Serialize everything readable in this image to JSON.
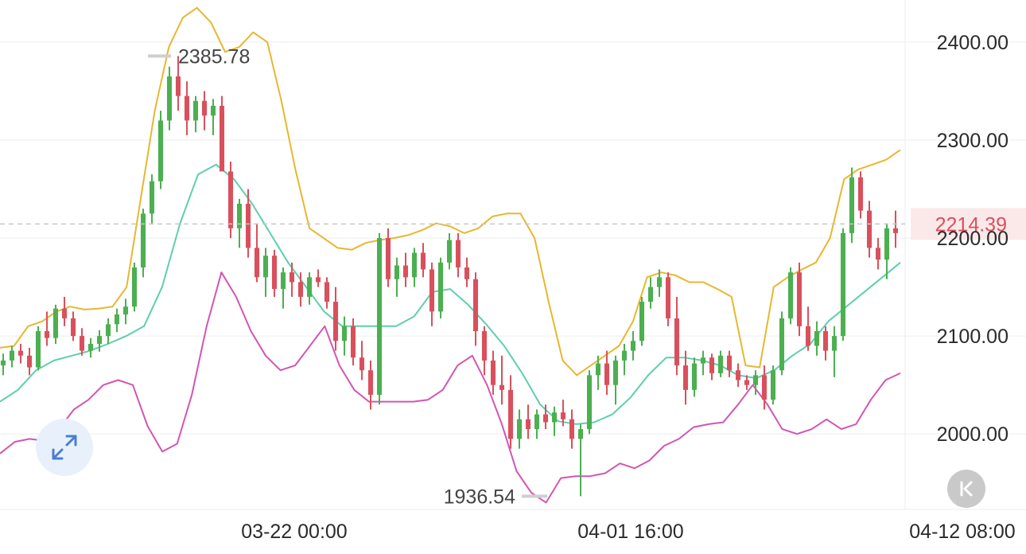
{
  "chart_data": {
    "type": "candlestick",
    "y_axis": {
      "ticks": [
        2000,
        2100,
        2200,
        2300,
        2400
      ],
      "tick_labels": [
        "2000.00",
        "2100.00",
        "2200.00",
        "2300.00",
        "2400.00"
      ],
      "range": [
        1923,
        2443
      ]
    },
    "x_axis": {
      "tick_labels": [
        "03-22 00:00",
        "04-01 16:00",
        "04-12 08:00"
      ]
    },
    "current_price": {
      "value": 2214.39,
      "label": "2214.39"
    },
    "annotations": [
      {
        "kind": "high",
        "label": "2385.78",
        "value": 2385.78
      },
      {
        "kind": "low",
        "label": "1936.54",
        "value": 1936.54
      }
    ],
    "indicators": {
      "upper_band": {
        "color": "#e8b730",
        "values": [
          2088,
          2090,
          2110,
          2115,
          2125,
          2130,
          2127,
          2128,
          2130,
          2150,
          2240,
          2330,
          2395,
          2425,
          2435,
          2420,
          2390,
          2395,
          2410,
          2400,
          2340,
          2270,
          2210,
          2200,
          2190,
          2188,
          2195,
          2198,
          2200,
          2203,
          2208,
          2215,
          2212,
          2205,
          2210,
          2222,
          2225,
          2225,
          2200,
          2135,
          2075,
          2060,
          2070,
          2080,
          2090,
          2115,
          2160,
          2165,
          2162,
          2155,
          2155,
          2148,
          2140,
          2070,
          2068,
          2150,
          2160,
          2168,
          2175,
          2200,
          2260,
          2270,
          2275,
          2280,
          2290
        ]
      },
      "middle_band": {
        "color": "#5dcfae",
        "values": [
          2033,
          2045,
          2065,
          2075,
          2080,
          2085,
          2092,
          2100,
          2110,
          2150,
          2215,
          2265,
          2275,
          2260,
          2235,
          2205,
          2175,
          2150,
          2125,
          2110,
          2110,
          2110,
          2110,
          2120,
          2145,
          2148,
          2132,
          2112,
          2090,
          2062,
          2030,
          2013,
          2010,
          2012,
          2020,
          2037,
          2060,
          2078,
          2078,
          2075,
          2070,
          2060,
          2057,
          2065,
          2080,
          2092,
          2115,
          2130,
          2145,
          2160,
          2175
        ]
      },
      "lower_band": {
        "color": "#d255b4",
        "values": [
          1980,
          1992,
          1995,
          1993,
          2005,
          2025,
          2035,
          2050,
          2055,
          2050,
          2008,
          1982,
          1990,
          2040,
          2110,
          2165,
          2140,
          2105,
          2080,
          2065,
          2070,
          2090,
          2110,
          2070,
          2045,
          2033,
          2033,
          2033,
          2033,
          2035,
          2045,
          2070,
          2080,
          2050,
          2010,
          1962,
          1940,
          1930,
          1955,
          1957,
          1957,
          1960,
          1970,
          1965,
          1973,
          1988,
          1995,
          2007,
          2010,
          2012,
          2030,
          2050,
          2030,
          2005,
          2000,
          2005,
          2015,
          2005,
          2010,
          2035,
          2055,
          2062
        ]
      }
    },
    "candles_ohlc": [
      [
        2070,
        2082,
        2060,
        2075
      ],
      [
        2075,
        2090,
        2068,
        2085
      ],
      [
        2085,
        2092,
        2072,
        2080
      ],
      [
        2080,
        2088,
        2060,
        2068
      ],
      [
        2068,
        2110,
        2065,
        2105
      ],
      [
        2105,
        2125,
        2090,
        2098
      ],
      [
        2098,
        2132,
        2092,
        2128
      ],
      [
        2128,
        2140,
        2110,
        2118
      ],
      [
        2118,
        2125,
        2095,
        2100
      ],
      [
        2100,
        2108,
        2080,
        2085
      ],
      [
        2085,
        2098,
        2078,
        2092
      ],
      [
        2092,
        2106,
        2084,
        2100
      ],
      [
        2100,
        2118,
        2092,
        2112
      ],
      [
        2112,
        2128,
        2104,
        2122
      ],
      [
        2122,
        2138,
        2112,
        2130
      ],
      [
        2130,
        2175,
        2125,
        2170
      ],
      [
        2170,
        2230,
        2160,
        2225
      ],
      [
        2225,
        2265,
        2215,
        2258
      ],
      [
        2258,
        2330,
        2250,
        2320
      ],
      [
        2320,
        2375,
        2310,
        2365
      ],
      [
        2365,
        2385.78,
        2330,
        2345
      ],
      [
        2345,
        2360,
        2305,
        2320
      ],
      [
        2320,
        2345,
        2308,
        2340
      ],
      [
        2340,
        2350,
        2310,
        2325
      ],
      [
        2325,
        2342,
        2305,
        2335
      ],
      [
        2335,
        2345,
        2280,
        2268
      ],
      [
        2268,
        2278,
        2200,
        2210
      ],
      [
        2210,
        2240,
        2190,
        2235
      ],
      [
        2235,
        2250,
        2180,
        2190
      ],
      [
        2190,
        2215,
        2155,
        2160
      ],
      [
        2160,
        2190,
        2140,
        2182
      ],
      [
        2182,
        2188,
        2140,
        2148
      ],
      [
        2148,
        2170,
        2128,
        2165
      ],
      [
        2165,
        2175,
        2140,
        2155
      ],
      [
        2155,
        2165,
        2130,
        2140
      ],
      [
        2140,
        2165,
        2132,
        2160
      ],
      [
        2160,
        2168,
        2150,
        2155
      ],
      [
        2155,
        2160,
        2128,
        2135
      ],
      [
        2135,
        2150,
        2085,
        2095
      ],
      [
        2095,
        2120,
        2080,
        2110
      ],
      [
        2110,
        2118,
        2070,
        2078
      ],
      [
        2078,
        2095,
        2055,
        2065
      ],
      [
        2065,
        2075,
        2025,
        2040
      ],
      [
        2040,
        2205,
        2030,
        2200
      ],
      [
        2200,
        2210,
        2150,
        2158
      ],
      [
        2158,
        2180,
        2140,
        2172
      ],
      [
        2172,
        2185,
        2150,
        2160
      ],
      [
        2160,
        2190,
        2150,
        2185
      ],
      [
        2185,
        2195,
        2160,
        2168
      ],
      [
        2168,
        2175,
        2110,
        2125
      ],
      [
        2125,
        2180,
        2118,
        2175
      ],
      [
        2175,
        2205,
        2168,
        2198
      ],
      [
        2198,
        2205,
        2160,
        2170
      ],
      [
        2170,
        2180,
        2150,
        2158
      ],
      [
        2158,
        2165,
        2090,
        2105
      ],
      [
        2105,
        2110,
        2060,
        2075
      ],
      [
        2075,
        2085,
        2040,
        2050
      ],
      [
        2050,
        2080,
        2030,
        2045
      ],
      [
        2045,
        2060,
        1985,
        1995
      ],
      [
        1995,
        2025,
        1985,
        2015
      ],
      [
        2015,
        2030,
        1995,
        2005
      ],
      [
        2005,
        2025,
        1995,
        2020
      ],
      [
        2020,
        2030,
        2005,
        2012
      ],
      [
        2012,
        2028,
        1998,
        2022
      ],
      [
        2022,
        2035,
        2008,
        2015
      ],
      [
        2015,
        2025,
        1985,
        1995
      ],
      [
        1995,
        2010,
        1936.54,
        2005
      ],
      [
        2005,
        2065,
        2000,
        2060
      ],
      [
        2060,
        2080,
        2045,
        2072
      ],
      [
        2072,
        2085,
        2040,
        2050
      ],
      [
        2050,
        2080,
        2030,
        2075
      ],
      [
        2075,
        2092,
        2060,
        2085
      ],
      [
        2085,
        2105,
        2075,
        2095
      ],
      [
        2095,
        2140,
        2090,
        2135
      ],
      [
        2135,
        2160,
        2128,
        2150
      ],
      [
        2150,
        2168,
        2140,
        2160
      ],
      [
        2160,
        2165,
        2110,
        2118
      ],
      [
        2118,
        2140,
        2060,
        2070
      ],
      [
        2070,
        2085,
        2030,
        2045
      ],
      [
        2045,
        2078,
        2038,
        2072
      ],
      [
        2072,
        2085,
        2060,
        2078
      ],
      [
        2078,
        2082,
        2055,
        2062
      ],
      [
        2062,
        2085,
        2058,
        2080
      ],
      [
        2080,
        2085,
        2058,
        2065
      ],
      [
        2065,
        2072,
        2048,
        2055
      ],
      [
        2055,
        2060,
        2045,
        2050
      ],
      [
        2050,
        2065,
        2040,
        2060
      ],
      [
        2060,
        2070,
        2025,
        2035
      ],
      [
        2035,
        2070,
        2030,
        2065
      ],
      [
        2065,
        2125,
        2060,
        2118
      ],
      [
        2118,
        2170,
        2112,
        2165
      ],
      [
        2165,
        2175,
        2100,
        2110
      ],
      [
        2110,
        2130,
        2085,
        2090
      ],
      [
        2090,
        2115,
        2080,
        2105
      ],
      [
        2105,
        2110,
        2075,
        2085
      ],
      [
        2085,
        2110,
        2058,
        2100
      ],
      [
        2100,
        2210,
        2095,
        2205
      ],
      [
        2205,
        2272,
        2195,
        2262
      ],
      [
        2262,
        2268,
        2220,
        2228
      ],
      [
        2228,
        2238,
        2180,
        2190
      ],
      [
        2190,
        2200,
        2168,
        2178
      ],
      [
        2178,
        2215,
        2158,
        2210
      ],
      [
        2210,
        2228,
        2190,
        2205
      ]
    ]
  },
  "controls": {
    "expand_icon": "expand-arrows-icon",
    "back_icon": "skip-back-icon"
  },
  "colors": {
    "up": "#4caf50",
    "down": "#d9505c",
    "grid": "#eeeeee",
    "price_line": "#c8c8c8",
    "price_tag_bg": "#fbe9ea",
    "price_tag_text": "#d9505c"
  }
}
